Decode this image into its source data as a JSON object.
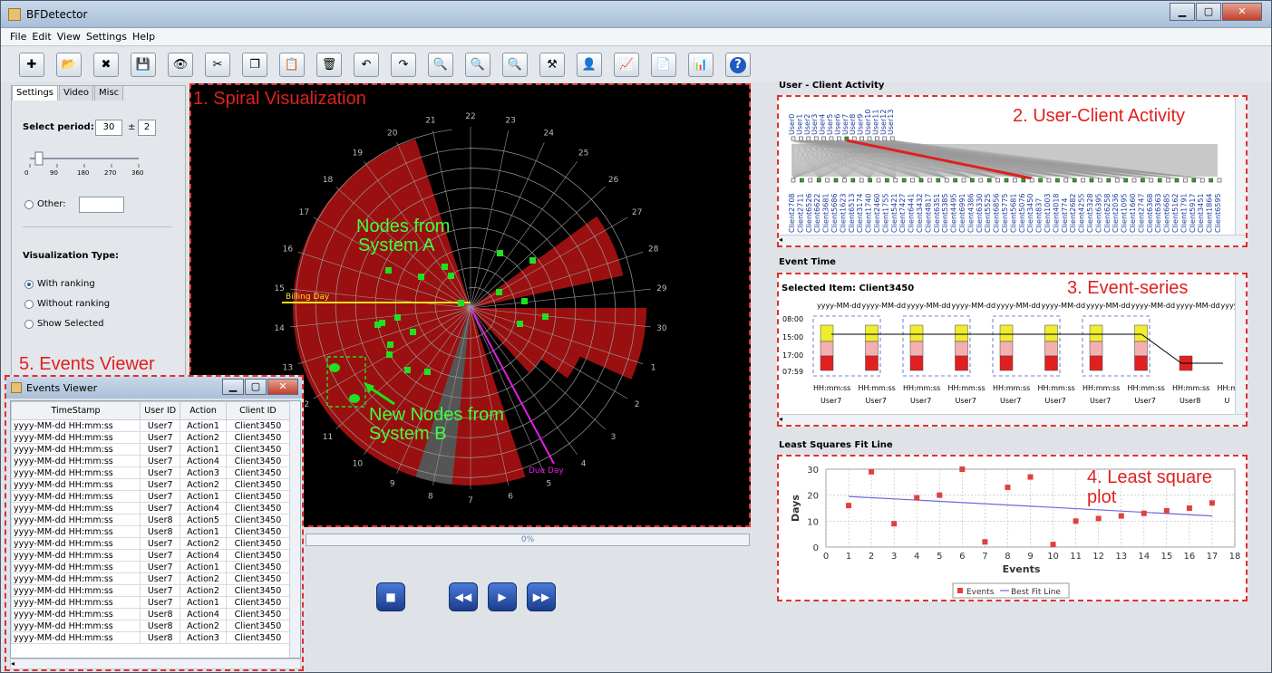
{
  "app": {
    "title": "BFDetector"
  },
  "menu": [
    "File",
    "Edit",
    "View",
    "Settings",
    "Help"
  ],
  "toolbar": [
    {
      "icon": "new-icon",
      "glyph": "✚"
    },
    {
      "icon": "open-icon",
      "glyph": "📂"
    },
    {
      "icon": "delete-icon",
      "glyph": "✖"
    },
    {
      "icon": "save-icon",
      "glyph": "💾"
    },
    {
      "icon": "view-icon",
      "glyph": "👁"
    },
    {
      "icon": "cut-icon",
      "glyph": "✂"
    },
    {
      "icon": "copy-icon",
      "glyph": "❐"
    },
    {
      "icon": "paste-icon",
      "glyph": "📋"
    },
    {
      "icon": "trash-icon",
      "glyph": "🗑"
    },
    {
      "icon": "undo-icon",
      "glyph": "↶"
    },
    {
      "icon": "redo-icon",
      "glyph": "↷"
    },
    {
      "icon": "zoom-in-icon",
      "glyph": "🔍"
    },
    {
      "icon": "zoom-out-icon",
      "glyph": "🔍"
    },
    {
      "icon": "zoom-fit-icon",
      "glyph": "🔍"
    },
    {
      "icon": "tools-icon",
      "glyph": "⚒"
    },
    {
      "icon": "user-icon",
      "glyph": "👤"
    },
    {
      "icon": "line-chart-icon",
      "glyph": "📈"
    },
    {
      "icon": "document-icon",
      "glyph": "📄"
    },
    {
      "icon": "bar-chart-icon",
      "glyph": "📊"
    },
    {
      "icon": "help-icon",
      "glyph": "?"
    }
  ],
  "settings": {
    "tabs": [
      "Settings",
      "Video",
      "Misc"
    ],
    "select_period_label": "Select period:",
    "period_value": "30",
    "plus_minus": "±",
    "period_delta": "2",
    "slider_ticks": [
      "0",
      "90",
      "180",
      "270",
      "360"
    ],
    "slider_value": 30,
    "other_label": "Other:",
    "vis_type_label": "Visualization Type:",
    "vis_options": [
      "With ranking",
      "Without ranking",
      "Show Selected"
    ],
    "vis_selected": 0
  },
  "spiral": {
    "caption": "1. Spiral Visualization",
    "labels": [
      "22",
      "23",
      "24",
      "25",
      "26",
      "27",
      "28",
      "29",
      "30",
      "1",
      "2",
      "3",
      "4",
      "5",
      "6",
      "7",
      "8",
      "9",
      "10",
      "11",
      "12",
      "13",
      "14",
      "15",
      "16",
      "17",
      "18",
      "19",
      "20",
      "21"
    ],
    "billing_label": "Billing Day",
    "due_label": "Due Day",
    "nodes_a_line1": "Nodes from",
    "nodes_a_line2": "System A",
    "nodes_b_line1": "New Nodes from",
    "nodes_b_line2": "System B",
    "colors": {
      "ring": "#9a1010",
      "grid": "#9a9a9a",
      "nodes": "#20e020",
      "billing": "#f0e020",
      "due": "#e020e0"
    }
  },
  "progress": {
    "label": "0%"
  },
  "user_client": {
    "section_title": "User - Client Activity",
    "caption": "2. User-Client Activity",
    "users": [
      "User0",
      "User1",
      "User2",
      "User3",
      "User4",
      "User5",
      "User6",
      "User7",
      "User8",
      "User9",
      "User10",
      "User11",
      "User12",
      "User13"
    ],
    "clients": [
      "Client2708",
      "Client2711",
      "Client6526",
      "Client6622",
      "Client3681",
      "Client5686",
      "Client1623",
      "Client6513",
      "Client3174",
      "Client1740",
      "Client2460",
      "Client1755",
      "Client5421",
      "Client7427",
      "Client6441",
      "Client3432",
      "Client4817",
      "Client6351",
      "Client5385",
      "Client4495",
      "Client6991",
      "Client4386",
      "Client6330",
      "Client5525",
      "Client6856",
      "Client5775",
      "Client5681",
      "Client5076",
      "Client3450",
      "Client837",
      "Client1003",
      "Client4018",
      "Client774",
      "Client2682",
      "Client4255",
      "Client5328",
      "Client6395",
      "Client6258",
      "Client2036",
      "Client1095",
      "Client1660",
      "Client2747",
      "Client6368",
      "Client6363",
      "Client6685",
      "Client5162",
      "Client1791",
      "Client5917",
      "Client3451",
      "Client1864",
      "Client6595"
    ]
  },
  "event_time": {
    "section_title": "Event Time",
    "selected": "Selected Item: Client3450",
    "caption": "3. Event-series",
    "times": [
      "08:00",
      "15:00",
      "17:00",
      "07:59"
    ],
    "date_label": "yyyy-MM-dd",
    "time_label": "HH:mm:ss",
    "users": [
      "User7",
      "User7",
      "User7",
      "User7",
      "User7",
      "User7",
      "User7",
      "User7",
      "User8",
      "U"
    ]
  },
  "least_squares": {
    "section_title": "Least Squares Fit Line",
    "caption_line1": "4. Least square",
    "caption_line2": "plot"
  },
  "chart_data": {
    "type": "scatter",
    "x": [
      1,
      2,
      3,
      4,
      5,
      6,
      7,
      8,
      9,
      10,
      11,
      12,
      13,
      14,
      15,
      16,
      17
    ],
    "y": [
      16,
      29,
      9,
      19,
      20,
      30,
      2,
      23,
      27,
      1,
      10,
      11,
      12,
      13,
      14,
      15,
      17
    ],
    "fit_line": {
      "x": [
        1,
        17
      ],
      "y": [
        19.5,
        12
      ]
    },
    "xlabel": "Events",
    "ylabel": "Days",
    "xlim": [
      0,
      18
    ],
    "ylim": [
      0,
      30
    ],
    "xticks": [
      "0",
      "1",
      "2",
      "3",
      "4",
      "5",
      "6",
      "7",
      "8",
      "9",
      "10",
      "11",
      "12",
      "13",
      "14",
      "15",
      "16",
      "17",
      "18"
    ],
    "yticks": [
      "0",
      "10",
      "20",
      "30"
    ],
    "legend": [
      "Events",
      "Best Fit Line"
    ],
    "colors": {
      "events": "#e04040",
      "fit": "#6a6ae0"
    },
    "grid": true
  },
  "events_viewer": {
    "caption": "5. Events Viewer",
    "title": "Events Viewer",
    "columns": [
      "TimeStamp",
      "User ID",
      "Action",
      "Client ID"
    ],
    "rows": [
      [
        "yyyy-MM-dd HH:mm:ss",
        "User7",
        "Action1",
        "Client3450"
      ],
      [
        "yyyy-MM-dd HH:mm:ss",
        "User7",
        "Action2",
        "Client3450"
      ],
      [
        "yyyy-MM-dd HH:mm:ss",
        "User7",
        "Action1",
        "Client3450"
      ],
      [
        "yyyy-MM-dd HH:mm:ss",
        "User7",
        "Action4",
        "Client3450"
      ],
      [
        "yyyy-MM-dd HH:mm:ss",
        "User7",
        "Action3",
        "Client3450"
      ],
      [
        "yyyy-MM-dd HH:mm:ss",
        "User7",
        "Action2",
        "Client3450"
      ],
      [
        "yyyy-MM-dd HH:mm:ss",
        "User7",
        "Action1",
        "Client3450"
      ],
      [
        "yyyy-MM-dd HH:mm:ss",
        "User7",
        "Action4",
        "Client3450"
      ],
      [
        "yyyy-MM-dd HH:mm:ss",
        "User8",
        "Action5",
        "Client3450"
      ],
      [
        "yyyy-MM-dd HH:mm:ss",
        "User8",
        "Action1",
        "Client3450"
      ],
      [
        "yyyy-MM-dd HH:mm:ss",
        "User7",
        "Action2",
        "Client3450"
      ],
      [
        "yyyy-MM-dd HH:mm:ss",
        "User7",
        "Action4",
        "Client3450"
      ],
      [
        "yyyy-MM-dd HH:mm:ss",
        "User7",
        "Action1",
        "Client3450"
      ],
      [
        "yyyy-MM-dd HH:mm:ss",
        "User7",
        "Action2",
        "Client3450"
      ],
      [
        "yyyy-MM-dd HH:mm:ss",
        "User7",
        "Action2",
        "Client3450"
      ],
      [
        "yyyy-MM-dd HH:mm:ss",
        "User7",
        "Action1",
        "Client3450"
      ],
      [
        "yyyy-MM-dd HH:mm:ss",
        "User8",
        "Action4",
        "Client3450"
      ],
      [
        "yyyy-MM-dd HH:mm:ss",
        "User8",
        "Action2",
        "Client3450"
      ],
      [
        "yyyy-MM-dd HH:mm:ss",
        "User8",
        "Action3",
        "Client3450"
      ]
    ]
  }
}
